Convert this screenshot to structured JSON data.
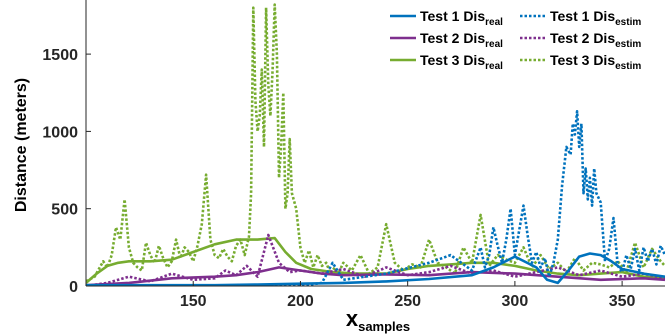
{
  "chart_data": {
    "type": "line",
    "title": "",
    "xlabel": "x",
    "xlabel_sub": "samples",
    "ylabel": "Distance (meters)",
    "xlim": [
      100,
      370
    ],
    "ylim": [
      0,
      1850
    ],
    "xticks": [
      150,
      200,
      250,
      300,
      350
    ],
    "yticks": [
      0,
      500,
      1000,
      1500
    ],
    "grid": false,
    "legend_position": "top-right",
    "series": [
      {
        "name": "Test 1 Dis",
        "sub": "real",
        "color": "#0072BD",
        "dash": false,
        "x": [
          100,
          120,
          140,
          160,
          180,
          200,
          220,
          240,
          260,
          280,
          290,
          300,
          310,
          315,
          320,
          325,
          330,
          335,
          340,
          345,
          350,
          360,
          370
        ],
        "y": [
          5,
          5,
          5,
          5,
          10,
          15,
          20,
          30,
          45,
          70,
          120,
          190,
          120,
          40,
          20,
          100,
          190,
          210,
          200,
          160,
          110,
          80,
          60
        ]
      },
      {
        "name": "Test 1 Dis",
        "sub": "estim",
        "color": "#0072BD",
        "dash": true,
        "x": [
          100,
          200,
          210,
          215,
          220,
          230,
          240,
          260,
          270,
          280,
          284,
          286,
          288,
          290,
          292,
          294,
          296,
          298,
          300,
          302,
          304,
          306,
          308,
          310,
          312,
          314,
          316,
          318,
          320,
          322,
          324,
          326,
          327,
          328,
          329,
          330,
          331,
          332,
          333,
          334,
          335,
          336,
          337,
          338,
          340,
          342,
          344,
          346,
          348,
          350,
          352,
          354,
          356,
          358,
          360,
          362,
          364,
          366,
          368,
          370
        ],
        "y": [
          0,
          0,
          20,
          150,
          40,
          60,
          80,
          150,
          200,
          100,
          250,
          120,
          200,
          380,
          260,
          150,
          300,
          500,
          200,
          360,
          520,
          320,
          150,
          220,
          120,
          180,
          60,
          150,
          300,
          650,
          900,
          850,
          1050,
          980,
          1130,
          900,
          1050,
          600,
          760,
          560,
          700,
          520,
          760,
          600,
          540,
          160,
          240,
          440,
          130,
          90,
          200,
          110,
          240,
          100,
          250,
          160,
          240,
          140,
          260,
          200
        ]
      },
      {
        "name": "Test 2 Dis",
        "sub": "real",
        "color": "#7E2F8E",
        "dash": false,
        "x": [
          100,
          120,
          140,
          160,
          170,
          180,
          190,
          200,
          210,
          220,
          240,
          260,
          280,
          300,
          320,
          340,
          360,
          370
        ],
        "y": [
          5,
          20,
          50,
          60,
          70,
          90,
          120,
          100,
          80,
          70,
          75,
          70,
          90,
          80,
          60,
          40,
          50,
          40
        ]
      },
      {
        "name": "Test 2 Dis",
        "sub": "estim",
        "color": "#7E2F8E",
        "dash": true,
        "x": [
          100,
          110,
          120,
          130,
          140,
          150,
          160,
          165,
          170,
          175,
          180,
          185,
          190,
          195,
          200,
          210,
          220,
          230,
          240,
          250,
          260,
          270,
          280,
          290,
          300,
          310,
          320,
          330,
          340,
          350,
          360,
          370
        ],
        "y": [
          0,
          20,
          60,
          30,
          80,
          40,
          50,
          100,
          70,
          130,
          60,
          330,
          150,
          90,
          100,
          80,
          110,
          60,
          120,
          70,
          90,
          130,
          80,
          100,
          60,
          90,
          120,
          70,
          100,
          60,
          80,
          50
        ]
      },
      {
        "name": "Test 3 Dis",
        "sub": "real",
        "color": "#77AC30",
        "dash": false,
        "x": [
          100,
          105,
          110,
          115,
          120,
          130,
          140,
          150,
          160,
          170,
          180,
          188,
          193,
          198,
          205,
          215,
          225,
          240,
          250,
          260,
          270,
          280,
          290,
          300,
          310,
          320,
          330,
          340,
          350,
          360,
          370
        ],
        "y": [
          20,
          80,
          130,
          150,
          160,
          160,
          170,
          220,
          270,
          300,
          300,
          310,
          220,
          150,
          110,
          90,
          80,
          80,
          110,
          130,
          140,
          150,
          150,
          130,
          100,
          80,
          70,
          80,
          90,
          60,
          50
        ]
      },
      {
        "name": "Test 3 Dis",
        "sub": "estim",
        "color": "#77AC30",
        "dash": true,
        "x": [
          100,
          104,
          108,
          110,
          112,
          114,
          116,
          118,
          120,
          122,
          124,
          126,
          128,
          130,
          132,
          134,
          136,
          138,
          140,
          142,
          144,
          146,
          148,
          150,
          152,
          154,
          156,
          158,
          160,
          162,
          164,
          166,
          168,
          170,
          172,
          174,
          176,
          177,
          178,
          179,
          180,
          181,
          182,
          183,
          184,
          185,
          186,
          187,
          188,
          189,
          190,
          191,
          192,
          193,
          194,
          195,
          196,
          198,
          200,
          202,
          204,
          206,
          208,
          210,
          212,
          214,
          216,
          218,
          220,
          224,
          228,
          232,
          236,
          240,
          244,
          248,
          252,
          256,
          260,
          264,
          268,
          272,
          276,
          280,
          284,
          288,
          292,
          296,
          300,
          304,
          308,
          312,
          316,
          320,
          324,
          328,
          332,
          336,
          340,
          344,
          348,
          352,
          356,
          360,
          364,
          368,
          370
        ],
        "y": [
          30,
          60,
          160,
          120,
          200,
          380,
          300,
          560,
          250,
          150,
          120,
          100,
          280,
          200,
          150,
          260,
          180,
          120,
          160,
          300,
          180,
          250,
          220,
          160,
          260,
          400,
          720,
          300,
          200,
          180,
          240,
          190,
          160,
          260,
          300,
          200,
          320,
          600,
          1800,
          1200,
          1000,
          1100,
          1400,
          900,
          1800,
          1300,
          1100,
          1400,
          1820,
          1500,
          700,
          900,
          1250,
          500,
          600,
          950,
          600,
          500,
          250,
          150,
          230,
          120,
          200,
          130,
          150,
          80,
          120,
          90,
          150,
          100,
          200,
          80,
          120,
          400,
          150,
          100,
          140,
          120,
          300,
          150,
          120,
          80,
          250,
          150,
          460,
          130,
          200,
          170,
          150,
          250,
          120,
          200,
          110,
          150,
          90,
          180,
          100,
          150,
          140,
          120,
          160,
          90,
          280,
          120,
          240,
          160,
          130
        ]
      }
    ]
  }
}
